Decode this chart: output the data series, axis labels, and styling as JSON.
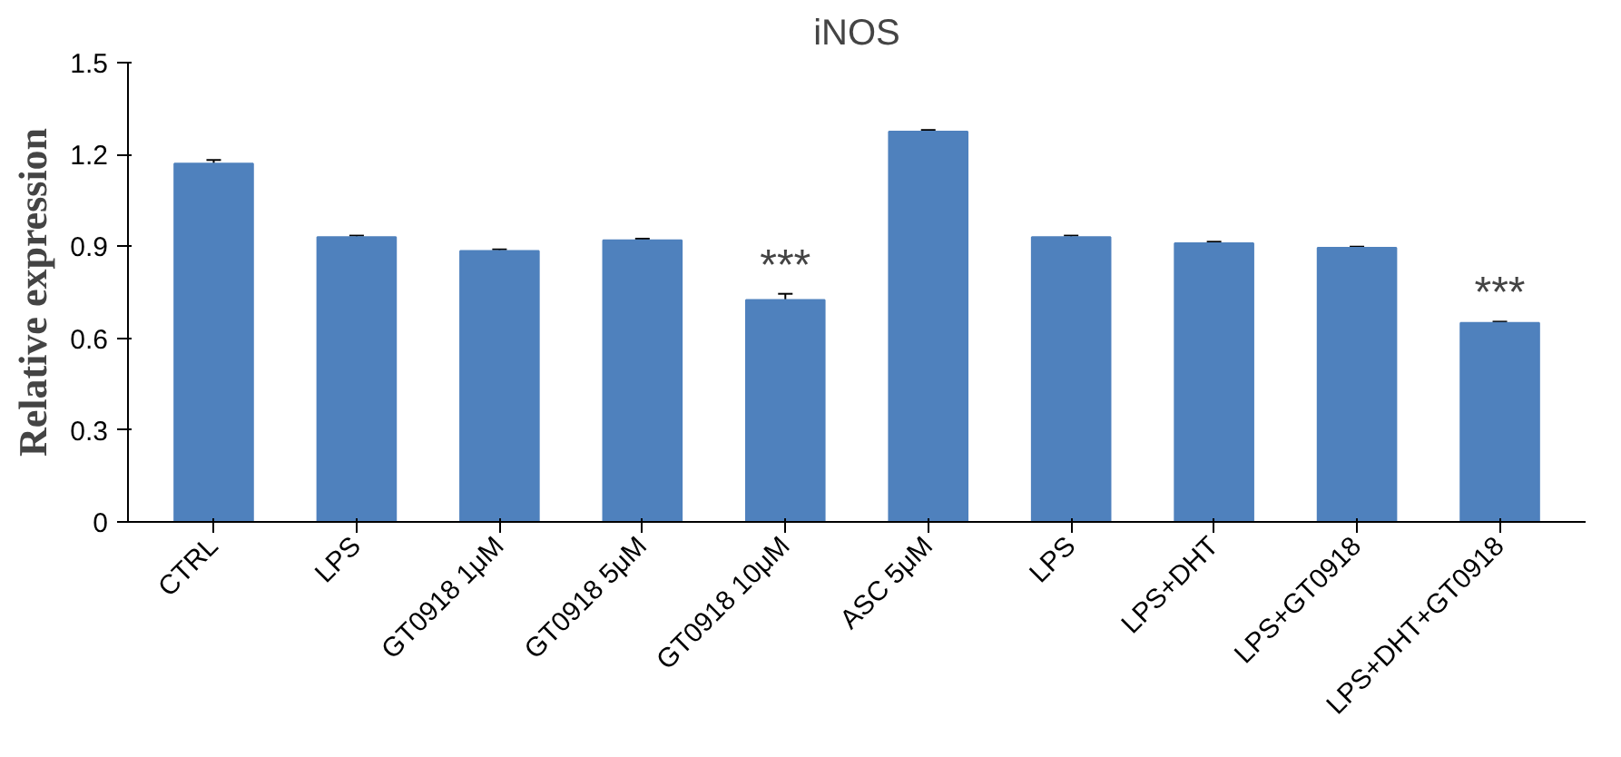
{
  "chart_data": {
    "type": "bar",
    "title": "iNOS",
    "ylabel": "Relative expression",
    "categories": [
      "CTRL",
      "LPS",
      "GT0918 1μM",
      "GT0918 5μM",
      "GT0918 10μM",
      "ASC 5μM",
      "LPS",
      "LPS+DHT",
      "LPS+GT0918",
      "LPS+DHT+GT0918"
    ],
    "values": [
      1.17,
      0.93,
      0.885,
      0.92,
      0.725,
      1.275,
      0.93,
      0.91,
      0.895,
      0.65
    ],
    "errors": [
      0.012,
      0.005,
      0.005,
      0.005,
      0.02,
      0.005,
      0.005,
      0.005,
      0.004,
      0.004
    ],
    "color": "#4f81bd",
    "ylim": [
      0,
      1.5
    ],
    "yticks": [
      0,
      0.3,
      0.6,
      0.9,
      1.2,
      1.5
    ],
    "grid": false,
    "annotations": [
      {
        "text": "***",
        "x": "GT0918 10μM",
        "y": 0.745
      },
      {
        "text": "***",
        "x": "LPS+DHT+GT0918",
        "y": 0.654
      }
    ]
  }
}
